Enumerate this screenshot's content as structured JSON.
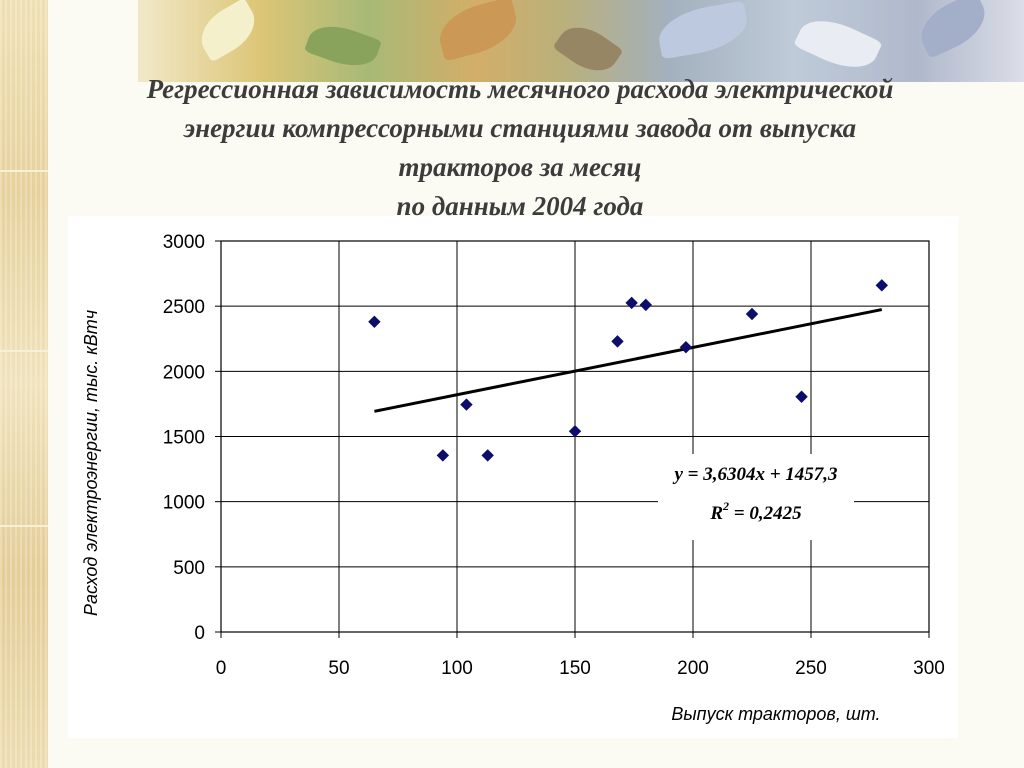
{
  "slide": {
    "title_lines": [
      "Регрессионная зависимость месячного расхода электрической",
      "энергии компрессорными станциями завода от выпуска",
      "тракторов за месяц",
      "по данным 2004 года"
    ]
  },
  "chart_data": {
    "type": "scatter",
    "title": "Регрессионная зависимость месячного расхода электрической энергии компрессорными станциями завода от выпуска тракторов за месяц по данным 2004 года",
    "xlabel": "Выпуск тракторов, шт.",
    "ylabel": "Расход электроэнергии, тыс. кВтч",
    "xlim": [
      0,
      300
    ],
    "ylim": [
      0,
      3000
    ],
    "x_ticks": [
      0,
      50,
      100,
      150,
      200,
      250,
      300
    ],
    "y_ticks": [
      0,
      500,
      1000,
      1500,
      2000,
      2500,
      3000
    ],
    "grid": true,
    "marker": "diamond",
    "marker_color": "#0d0d6b",
    "points": [
      {
        "x": 65,
        "y": 2380
      },
      {
        "x": 94,
        "y": 1355
      },
      {
        "x": 104,
        "y": 1745
      },
      {
        "x": 113,
        "y": 1355
      },
      {
        "x": 150,
        "y": 1540
      },
      {
        "x": 168,
        "y": 2230
      },
      {
        "x": 174,
        "y": 2525
      },
      {
        "x": 180,
        "y": 2510
      },
      {
        "x": 197,
        "y": 2185
      },
      {
        "x": 225,
        "y": 2440
      },
      {
        "x": 246,
        "y": 1805
      },
      {
        "x": 280,
        "y": 2660
      }
    ],
    "trendline": {
      "slope": 3.6304,
      "intercept": 1457.3,
      "x_range": [
        65,
        280
      ],
      "equation_label": "y = 3,6304x + 1457,3",
      "r2_prefix": "R",
      "r2_superscript": "2",
      "r2_suffix": " = 0,2425"
    }
  }
}
